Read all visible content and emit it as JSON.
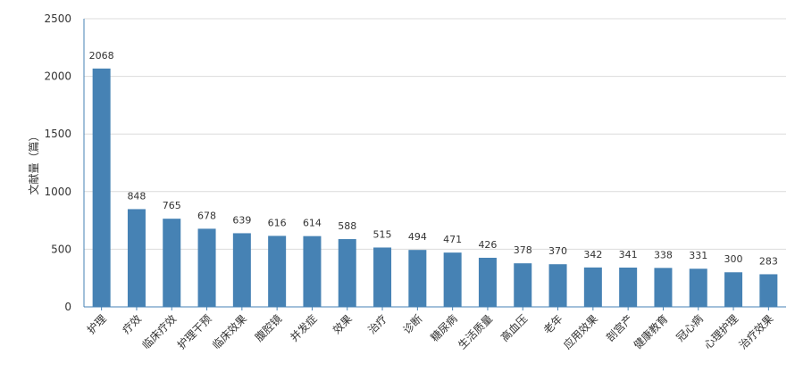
{
  "chart_data": {
    "type": "bar",
    "title": "",
    "xlabel": "",
    "ylabel": "文献量（篇）",
    "ylim": [
      0,
      2500
    ],
    "yticks": [
      0,
      500,
      1000,
      1500,
      2000,
      2500
    ],
    "grid": true,
    "legend": "none",
    "bar_color": "#4682B4",
    "categories": [
      "护理",
      "疗效",
      "临床疗效",
      "护理干预",
      "临床效果",
      "腹腔镜",
      "并发症",
      "效果",
      "治疗",
      "诊断",
      "糖尿病",
      "生活质量",
      "高血压",
      "老年",
      "应用效果",
      "剖宫产",
      "健康教育",
      "冠心病",
      "心理护理",
      "治疗效果"
    ],
    "values": [
      2068,
      848,
      765,
      678,
      639,
      616,
      614,
      588,
      515,
      494,
      471,
      426,
      378,
      370,
      342,
      341,
      338,
      331,
      300,
      283
    ]
  }
}
